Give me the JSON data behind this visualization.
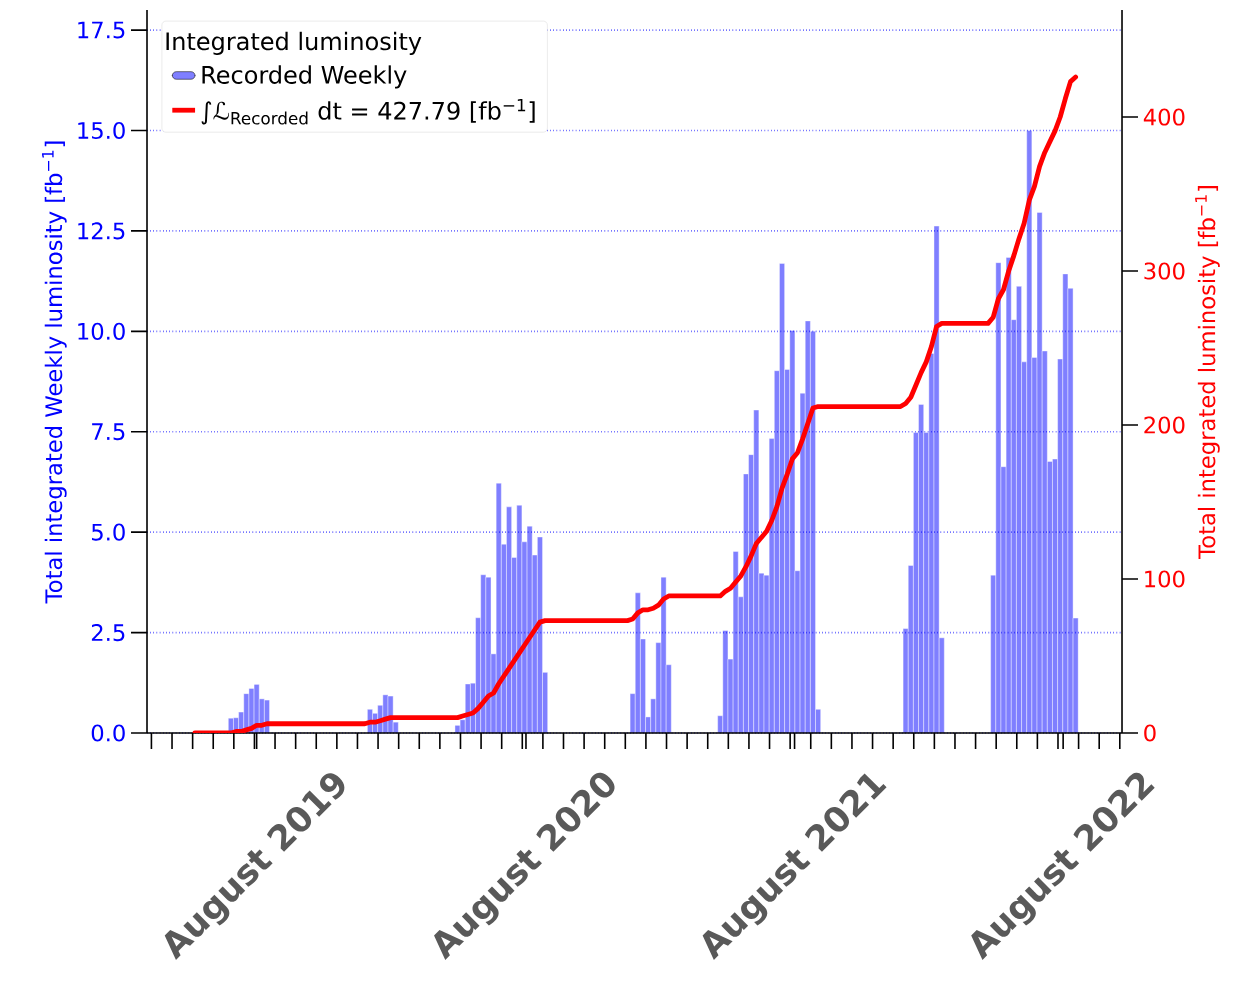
{
  "chart_data": {
    "type": "bar",
    "ylabel": "Total integrated Weekly luminosity [fb$^{−1}$]",
    "y2label": "Total integrated luminosity [fb$^{−1}$]",
    "legend_title": "Integrated luminosity",
    "legend": "top left",
    "grid": "y",
    "xlim": [
      "2019-03-05",
      "2022-10-20"
    ],
    "ylim": [
      0,
      18
    ],
    "y2lim": [
      0,
      469.5
    ],
    "yticks": [
      {
        "value": 0,
        "label": "0.0"
      },
      2.5,
      {
        "value": 5,
        "label": "5.0"
      },
      7.5,
      {
        "value": 10,
        "label": "10.0"
      },
      12.5,
      {
        "value": 15,
        "label": "15.0"
      },
      17.5
    ],
    "y2ticks": [
      0,
      100,
      200,
      300,
      400
    ],
    "xticks": [
      {
        "value": "2019-03-11",
        "label": null
      },
      {
        "value": "2019-04-08",
        "label": null
      },
      {
        "value": "2019-05-06",
        "label": null
      },
      {
        "value": "2019-06-03",
        "label": null
      },
      {
        "value": "2019-07-01",
        "label": null
      },
      {
        "value": "2019-07-29",
        "label": null
      },
      {
        "value": "2019-08-01",
        "label": "August 2019"
      },
      {
        "value": "2019-08-26",
        "label": null
      },
      {
        "value": "2019-09-23",
        "label": null
      },
      {
        "value": "2019-10-21",
        "label": null
      },
      {
        "value": "2019-11-18",
        "label": null
      },
      {
        "value": "2019-12-16",
        "label": null
      },
      {
        "value": "2020-01-13",
        "label": null
      },
      {
        "value": "2020-02-10",
        "label": null
      },
      {
        "value": "2020-03-09",
        "label": null
      },
      {
        "value": "2020-04-06",
        "label": null
      },
      {
        "value": "2020-05-04",
        "label": null
      },
      {
        "value": "2020-06-01",
        "label": null
      },
      {
        "value": "2020-06-29",
        "label": null
      },
      {
        "value": "2020-07-27",
        "label": null
      },
      {
        "value": "2020-08-01",
        "label": "August 2020"
      },
      {
        "value": "2020-08-24",
        "label": null
      },
      {
        "value": "2020-09-21",
        "label": null
      },
      {
        "value": "2020-10-19",
        "label": null
      },
      {
        "value": "2020-11-16",
        "label": null
      },
      {
        "value": "2020-12-14",
        "label": null
      },
      {
        "value": "2021-01-11",
        "label": null
      },
      {
        "value": "2021-02-08",
        "label": null
      },
      {
        "value": "2021-03-08",
        "label": null
      },
      {
        "value": "2021-04-05",
        "label": null
      },
      {
        "value": "2021-05-03",
        "label": null
      },
      {
        "value": "2021-05-31",
        "label": null
      },
      {
        "value": "2021-06-28",
        "label": null
      },
      {
        "value": "2021-07-26",
        "label": null
      },
      {
        "value": "2021-08-01",
        "label": "August 2021"
      },
      {
        "value": "2021-08-23",
        "label": null
      },
      {
        "value": "2021-09-20",
        "label": null
      },
      {
        "value": "2021-10-18",
        "label": null
      },
      {
        "value": "2021-11-15",
        "label": null
      },
      {
        "value": "2021-12-13",
        "label": null
      },
      {
        "value": "2022-01-10",
        "label": null
      },
      {
        "value": "2022-02-07",
        "label": null
      },
      {
        "value": "2022-03-07",
        "label": null
      },
      {
        "value": "2022-04-04",
        "label": null
      },
      {
        "value": "2022-05-02",
        "label": null
      },
      {
        "value": "2022-05-30",
        "label": null
      },
      {
        "value": "2022-06-27",
        "label": null
      },
      {
        "value": "2022-07-25",
        "label": null
      },
      {
        "value": "2022-08-01",
        "label": "August 2022"
      },
      {
        "value": "2022-08-22",
        "label": null
      },
      {
        "value": "2022-09-19",
        "label": null
      },
      {
        "value": "2022-10-17",
        "label": null
      }
    ],
    "series": [
      {
        "name": "Recorded Weekly",
        "color": "#7f7fff",
        "x": [
          "2019-06-27",
          "2019-07-04",
          "2019-07-11",
          "2019-07-18",
          "2019-07-25",
          "2019-08-01",
          "2019-08-08",
          "2019-08-15",
          "2019-08-22",
          "2020-01-02",
          "2020-01-09",
          "2020-01-16",
          "2020-01-23",
          "2020-01-30",
          "2020-02-06",
          "2020-04-30",
          "2020-05-07",
          "2020-05-14",
          "2020-05-21",
          "2020-05-28",
          "2020-06-04",
          "2020-06-11",
          "2020-06-18",
          "2020-06-25",
          "2020-07-02",
          "2020-07-09",
          "2020-07-16",
          "2020-07-23",
          "2020-07-30",
          "2020-08-06",
          "2020-08-13",
          "2020-08-20",
          "2020-08-27",
          "2020-12-24",
          "2020-12-31",
          "2021-01-07",
          "2021-01-14",
          "2021-01-21",
          "2021-01-28",
          "2021-02-04",
          "2021-02-11",
          "2021-04-22",
          "2021-04-29",
          "2021-05-06",
          "2021-05-13",
          "2021-05-20",
          "2021-05-27",
          "2021-06-03",
          "2021-06-10",
          "2021-06-17",
          "2021-06-24",
          "2021-07-01",
          "2021-07-08",
          "2021-07-15",
          "2021-07-22",
          "2021-07-29",
          "2021-08-05",
          "2021-08-12",
          "2021-08-19",
          "2021-08-26",
          "2021-09-02",
          "2021-12-30",
          "2022-01-06",
          "2022-01-13",
          "2022-01-20",
          "2022-01-27",
          "2022-02-03",
          "2022-02-10",
          "2022-02-17",
          "2022-04-28",
          "2022-05-05",
          "2022-05-12",
          "2022-05-19",
          "2022-05-26",
          "2022-06-02",
          "2022-06-09",
          "2022-06-16",
          "2022-06-23",
          "2022-06-30",
          "2022-07-07",
          "2022-07-14",
          "2022-07-21",
          "2022-07-28",
          "2022-08-04",
          "2022-08-11",
          "2022-08-18"
        ],
        "values": [
          0.37,
          0.38,
          0.52,
          0.98,
          1.11,
          1.21,
          0.85,
          0.82,
          null,
          0.59,
          0.49,
          0.69,
          0.95,
          0.92,
          0.27,
          0.19,
          0.33,
          1.22,
          1.24,
          2.87,
          3.94,
          3.88,
          1.97,
          6.22,
          4.7,
          5.63,
          4.37,
          5.67,
          4.76,
          5.15,
          4.43,
          4.88,
          1.51,
          0.98,
          3.49,
          2.34,
          0.4,
          0.85,
          2.25,
          3.88,
          1.7,
          0.43,
          2.55,
          1.84,
          4.52,
          3.39,
          6.45,
          6.93,
          8.04,
          3.98,
          3.93,
          7.33,
          9.02,
          11.69,
          9.05,
          10.02,
          4.04,
          8.46,
          10.26,
          10.0,
          0.59,
          2.6,
          4.17,
          7.48,
          8.18,
          7.48,
          9.45,
          12.62,
          2.37,
          3.93,
          11.71,
          6.63,
          11.84,
          10.29,
          11.12,
          9.24,
          15.0,
          9.35,
          12.96,
          9.51,
          6.76,
          6.82,
          9.31,
          11.43,
          11.07,
          2.86
        ]
      },
      {
        "name": "∫ℒ$_{Recorded}$ dt = 427.79 [fb$^{−1}$]",
        "type": "line",
        "axis": "y2",
        "color": "#ff0000",
        "x": [
          "2019-05-09",
          "2019-06-20",
          "2019-06-27",
          "2019-07-04",
          "2019-07-11",
          "2019-07-18",
          "2019-07-25",
          "2019-08-01",
          "2019-08-08",
          "2019-08-15",
          "2019-08-22",
          "2019-12-26",
          "2020-01-02",
          "2020-01-09",
          "2020-01-16",
          "2020-01-23",
          "2020-01-30",
          "2020-02-06",
          "2020-04-23",
          "2020-04-30",
          "2020-05-07",
          "2020-05-14",
          "2020-05-21",
          "2020-05-28",
          "2020-06-04",
          "2020-06-11",
          "2020-06-18",
          "2020-06-25",
          "2020-07-02",
          "2020-07-09",
          "2020-07-16",
          "2020-07-23",
          "2020-07-30",
          "2020-08-06",
          "2020-08-13",
          "2020-08-20",
          "2020-08-27",
          "2020-12-17",
          "2020-12-24",
          "2020-12-31",
          "2021-01-07",
          "2021-01-14",
          "2021-01-21",
          "2021-01-28",
          "2021-02-04",
          "2021-02-11",
          "2021-04-15",
          "2021-04-22",
          "2021-04-29",
          "2021-05-06",
          "2021-05-13",
          "2021-05-20",
          "2021-05-27",
          "2021-06-03",
          "2021-06-10",
          "2021-06-17",
          "2021-06-24",
          "2021-07-01",
          "2021-07-08",
          "2021-07-15",
          "2021-07-22",
          "2021-07-29",
          "2021-08-05",
          "2021-08-12",
          "2021-08-19",
          "2021-08-26",
          "2021-09-02",
          "2021-12-23",
          "2021-12-30",
          "2022-01-06",
          "2022-01-13",
          "2022-01-20",
          "2022-01-27",
          "2022-02-03",
          "2022-02-10",
          "2022-02-17",
          "2022-04-21",
          "2022-04-28",
          "2022-05-05",
          "2022-05-12",
          "2022-05-19",
          "2022-05-26",
          "2022-06-02",
          "2022-06-09",
          "2022-06-16",
          "2022-06-23",
          "2022-06-30",
          "2022-07-07",
          "2022-07-14",
          "2022-07-21",
          "2022-07-28",
          "2022-08-04",
          "2022-08-11",
          "2022-08-18"
        ],
        "values": [
          0,
          0,
          0,
          1,
          1,
          2,
          3,
          5,
          5,
          6,
          6,
          6,
          7,
          7,
          8,
          9,
          10,
          10,
          10,
          10,
          11,
          12,
          13,
          16,
          20,
          24,
          26,
          32,
          37,
          42,
          47,
          52,
          57,
          62,
          67,
          72,
          73,
          73,
          74,
          78,
          80,
          80,
          81,
          83,
          87,
          89,
          89,
          89,
          92,
          94,
          98,
          102,
          108,
          115,
          123,
          127,
          131,
          138,
          147,
          159,
          168,
          178,
          182,
          191,
          201,
          211,
          212,
          212,
          214,
          218,
          226,
          234,
          241,
          251,
          264,
          266,
          266,
          270,
          282,
          288,
          300,
          310,
          321,
          331,
          346,
          355,
          368,
          377,
          384,
          391,
          400,
          412,
          423,
          426
        ]
      }
    ]
  }
}
